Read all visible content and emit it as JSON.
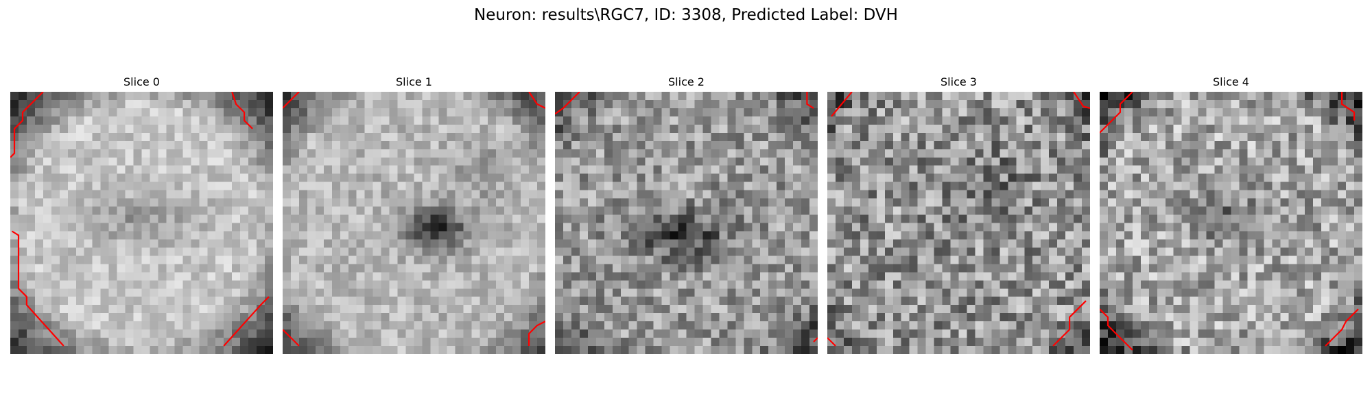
{
  "figure": {
    "suptitle": "Neuron: results\\RGC7, ID: 3308, Predicted Label: DVH"
  },
  "colors": {
    "contour": "#ff0000",
    "background": "#ffffff"
  },
  "slices": [
    {
      "title": "Slice 0"
    },
    {
      "title": "Slice 1"
    },
    {
      "title": "Slice 2"
    },
    {
      "title": "Slice 3"
    },
    {
      "title": "Slice 4"
    }
  ]
}
